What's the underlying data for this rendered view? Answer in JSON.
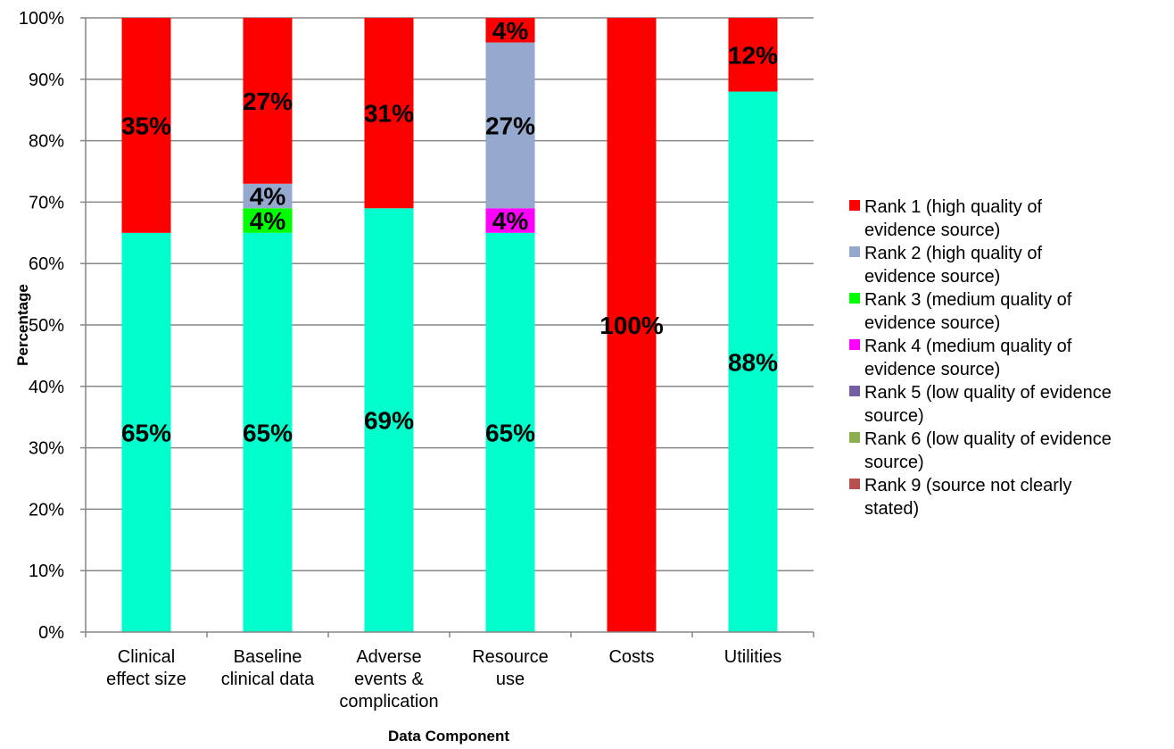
{
  "chart_data": {
    "type": "bar",
    "stacked": true,
    "percent": true,
    "xlabel": "Data Component",
    "ylabel": "Percentage",
    "ylim": [
      0,
      100
    ],
    "yticks": [
      "0%",
      "10%",
      "20%",
      "30%",
      "40%",
      "50%",
      "60%",
      "70%",
      "80%",
      "90%",
      "100%"
    ],
    "grid": true,
    "legend_position": "right",
    "categories": [
      "Clinical\neffect size",
      "Baseline\nclinical data",
      "Adverse\nevents &\ncomplication",
      "Resource\nuse",
      "Costs",
      "Utilities"
    ],
    "series": [
      {
        "name": "Rank 1 (high quality of\nevidence source)",
        "color": "#ff0000",
        "values": [
          35,
          27,
          31,
          4,
          100,
          12
        ]
      },
      {
        "name": "Rank 2 (high quality of\nevidence source)",
        "color": "#95a9cf",
        "values": [
          0,
          4,
          0,
          27,
          0,
          0
        ]
      },
      {
        "name": "Rank 3 (medium quality of\nevidence source)",
        "color": "#00ff00",
        "values": [
          0,
          4,
          0,
          0,
          0,
          0
        ]
      },
      {
        "name": "Rank 4 (medium quality of\nevidence source)",
        "color": "#ff00ff",
        "values": [
          0,
          0,
          0,
          4,
          0,
          0
        ]
      },
      {
        "name": "Rank 5 (low quality of evidence\nsource)",
        "color": "#7460a0",
        "values": [
          0,
          0,
          0,
          0,
          0,
          0
        ]
      },
      {
        "name": "Rank 6 (low quality of evidence\nsource)",
        "color": "#8caf4d",
        "values": [
          0,
          0,
          0,
          0,
          0,
          0
        ]
      },
      {
        "name": "Rank 9 (source not clearly\nstated)",
        "color": "#b7504c",
        "values": [
          0,
          0,
          0,
          0,
          0,
          0
        ]
      },
      {
        "name": "",
        "color": "#00ffcc",
        "values": [
          65,
          65,
          69,
          65,
          0,
          88
        ]
      }
    ]
  }
}
